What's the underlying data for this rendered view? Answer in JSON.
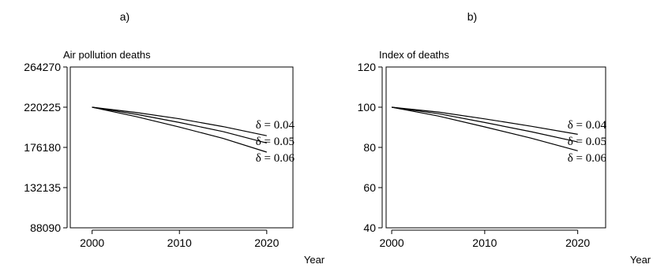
{
  "panels": [
    {
      "letter": "a)",
      "chart_data": {
        "type": "line",
        "title": "Air pollution deaths",
        "xlabel": "Year",
        "ylabel": "",
        "xlim": [
          1997.5,
          2023
        ],
        "ylim": [
          88090,
          264270
        ],
        "x_ticks": [
          2000,
          2010,
          2020
        ],
        "x_tick_labels": [
          "2000",
          "2010",
          "2020"
        ],
        "y_ticks": [
          88090,
          132135,
          176180,
          220225,
          264270
        ],
        "y_tick_labels": [
          "88090",
          "132135",
          "176180",
          "220225",
          "264270"
        ],
        "grid": false,
        "legend": "none",
        "x": [
          2000,
          2005,
          2010,
          2015,
          2020
        ],
        "series": [
          {
            "name": "δ = 0.04",
            "values": [
              220225,
              214500,
              207500,
              199000,
              189000
            ]
          },
          {
            "name": "δ = 0.05",
            "values": [
              220225,
              212500,
              203500,
              193500,
              181000
            ]
          },
          {
            "name": "δ = 0.06",
            "values": [
              220225,
              210000,
              198500,
              186000,
              171000
            ]
          }
        ]
      }
    },
    {
      "letter": "b)",
      "chart_data": {
        "type": "line",
        "title": "Index of deaths",
        "xlabel": "Year",
        "ylabel": "",
        "xlim": [
          1999.4,
          2023
        ],
        "ylim": [
          40,
          120
        ],
        "x_ticks": [
          2000,
          2010,
          2020
        ],
        "x_tick_labels": [
          "2000",
          "2010",
          "2020"
        ],
        "y_ticks": [
          40,
          60,
          80,
          100,
          120
        ],
        "y_tick_labels": [
          "40",
          "60",
          "80",
          "100",
          "120"
        ],
        "grid": false,
        "legend": "none",
        "x": [
          2000,
          2005,
          2010,
          2015,
          2020
        ],
        "series": [
          {
            "name": "δ = 0.04",
            "values": [
              100,
              97.6,
              94.2,
              90.5,
              86.5
            ]
          },
          {
            "name": "δ = 0.05",
            "values": [
              100,
              96.8,
              92.4,
              87.8,
              82.7
            ]
          },
          {
            "name": "δ = 0.06",
            "values": [
              100,
              95.6,
              90.2,
              84.6,
              78.3
            ]
          }
        ]
      }
    }
  ]
}
